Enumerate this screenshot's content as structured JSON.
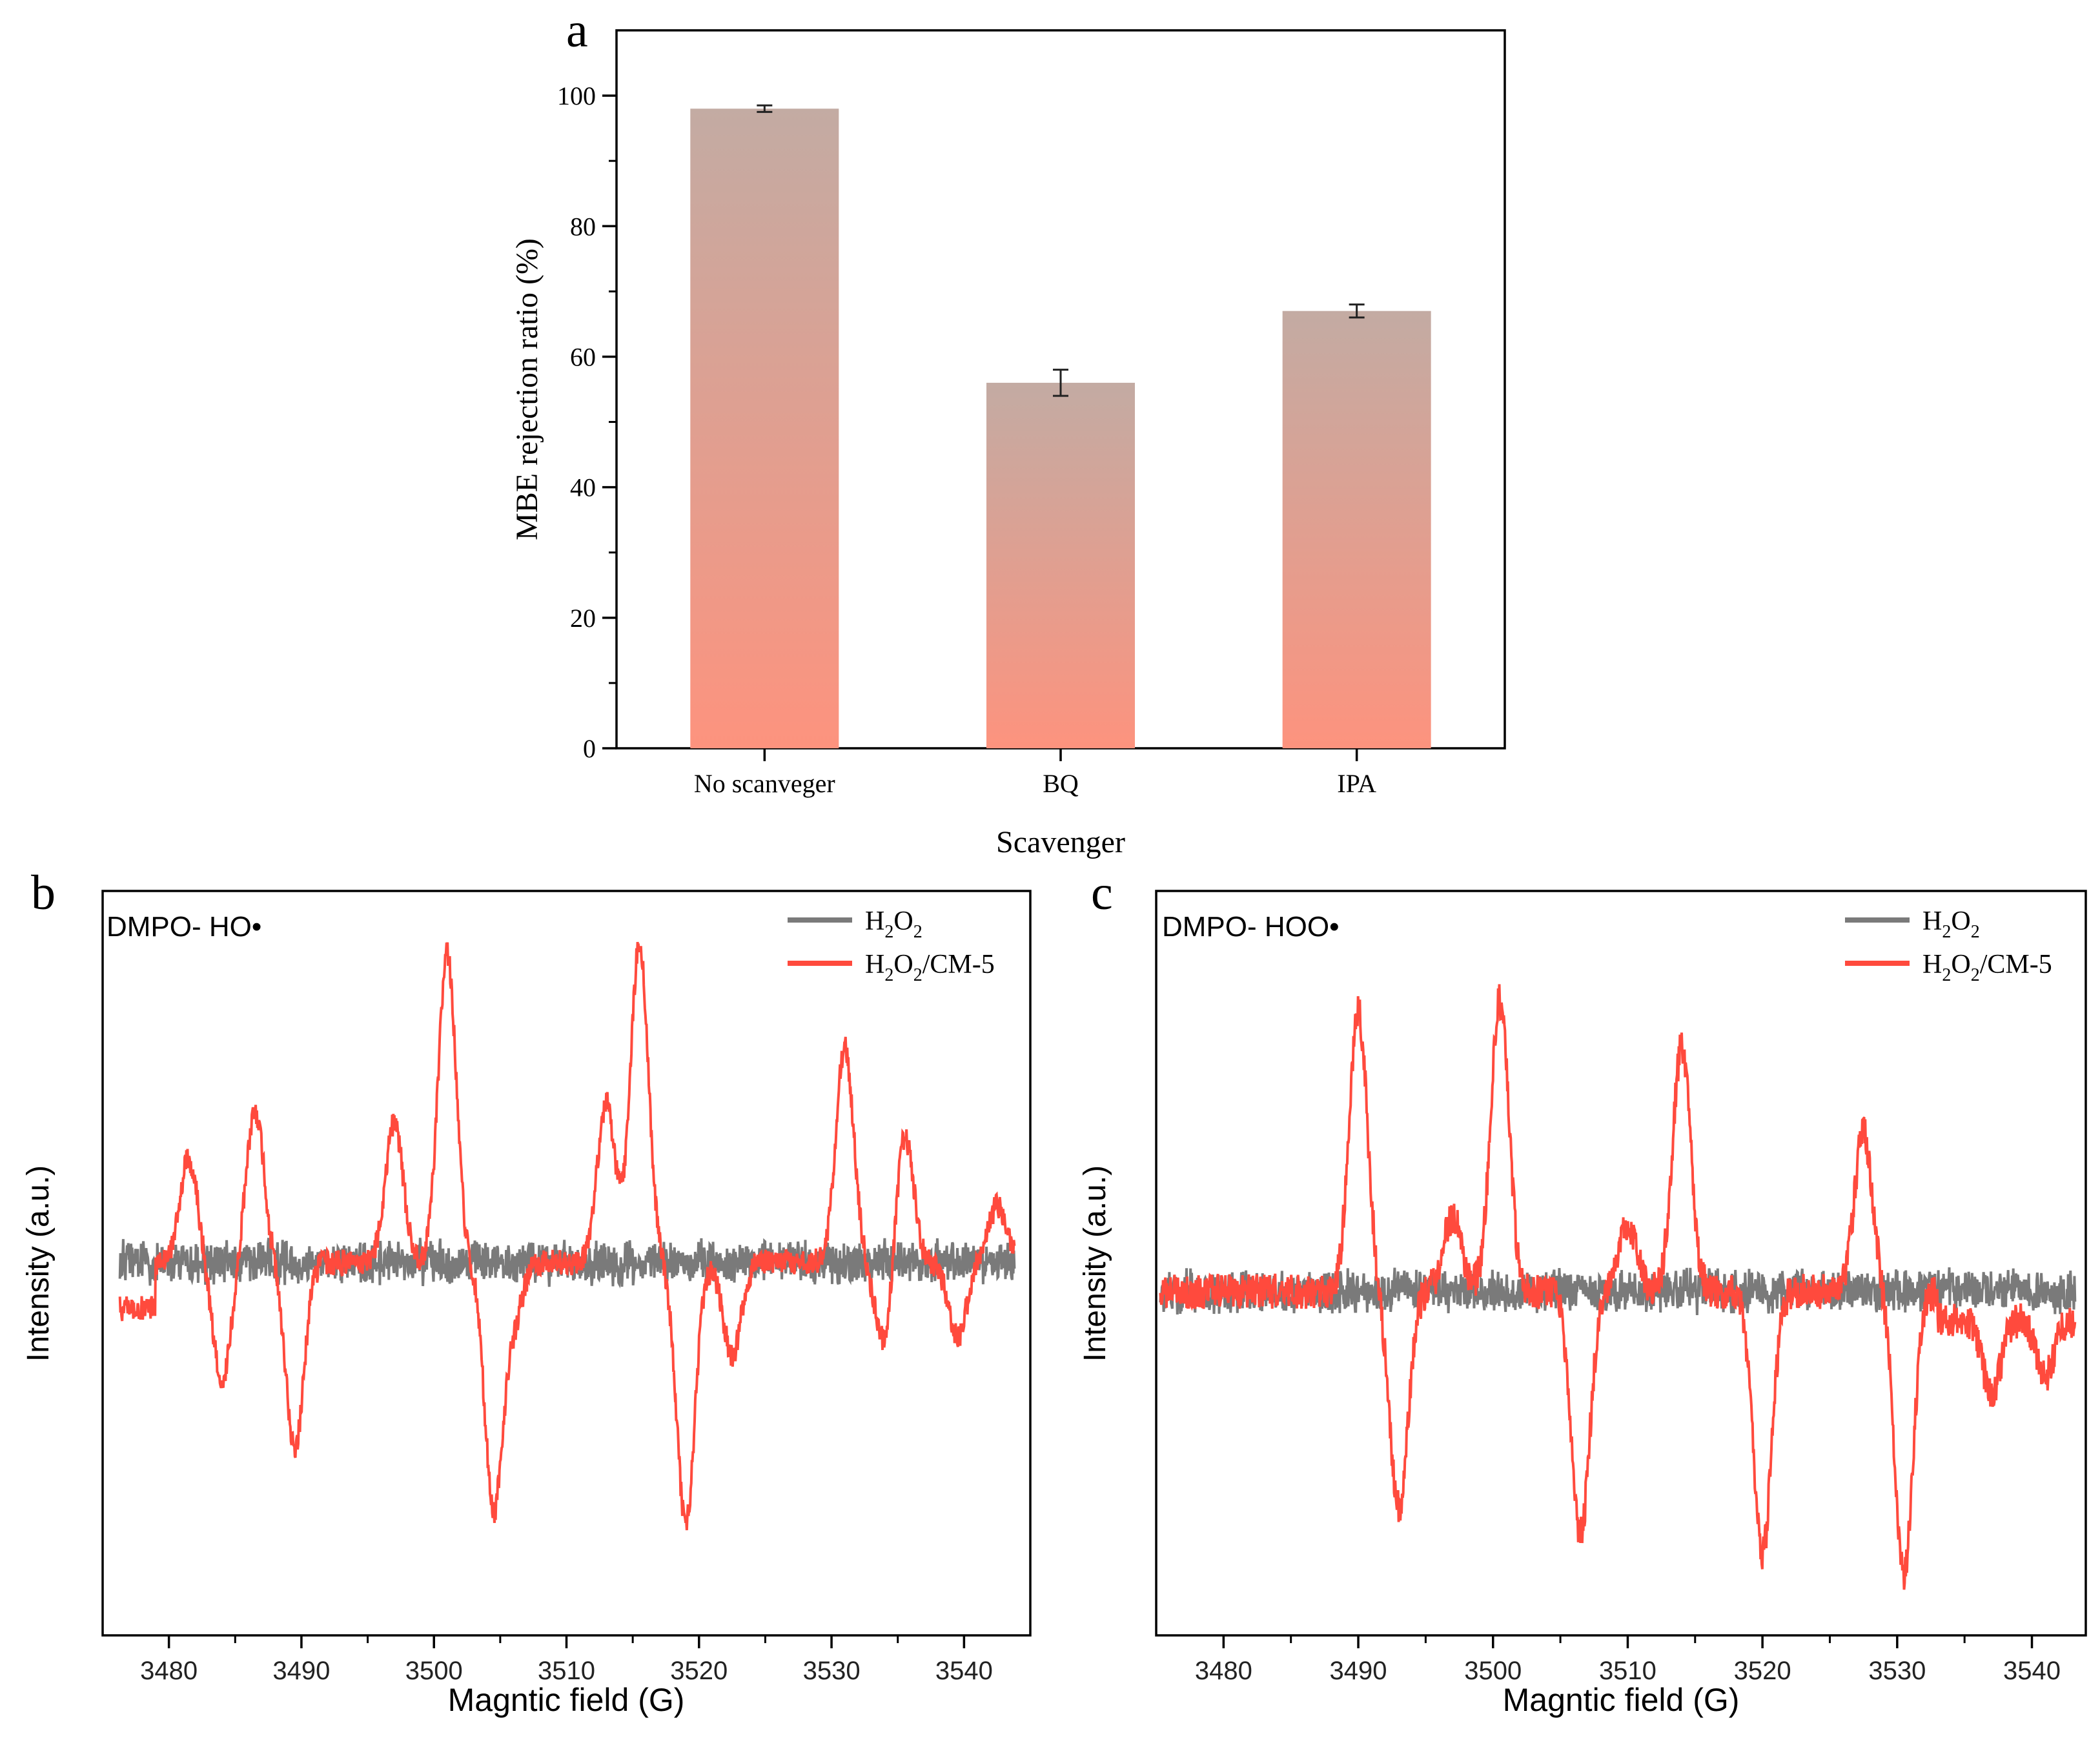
{
  "chart_data": [
    {
      "panel": "a",
      "type": "bar",
      "title": "",
      "xlabel": "Scavenger",
      "ylabel": "MBE rejection ratio (%)",
      "ylim": [
        0,
        110
      ],
      "yticks": [
        "0",
        "20",
        "40",
        "60",
        "80",
        "100"
      ],
      "categories": [
        "No scanveger",
        "BQ",
        "IPA"
      ],
      "values": [
        98,
        56,
        67
      ],
      "errors": [
        0.5,
        2.0,
        1.0
      ],
      "colors": {
        "bar_top": "#c3aba3",
        "bar_bottom": "#fd937e",
        "axis": "#000000"
      }
    },
    {
      "panel": "b",
      "type": "line",
      "annotation": "DMPO- HO•",
      "xlabel": "Magntic field (G)",
      "ylabel": "Intensity (a.u.)",
      "xlim": [
        3475,
        3545
      ],
      "xticks": [
        "3480",
        "3490",
        "3500",
        "3510",
        "3520",
        "3530",
        "3540"
      ],
      "series": [
        {
          "name": "H₂O₂",
          "legend_main": "H",
          "legend_sub1": "2",
          "legend_mid": "O",
          "legend_sub2": "2",
          "legend_tail": "",
          "color": "#7a7a7a"
        },
        {
          "name": "H₂O₂/CM-5",
          "legend_main": "H",
          "legend_sub1": "2",
          "legend_mid": "O",
          "legend_sub2": "2",
          "legend_tail": "/CM-5",
          "color": "#ff4a3d"
        }
      ],
      "peaks": [
        [
          3481.5,
          0.55
        ],
        [
          3484,
          -0.62
        ],
        [
          3486.5,
          0.8
        ],
        [
          3489.5,
          -1.0
        ],
        [
          3497,
          0.75
        ],
        [
          3501,
          1.65
        ],
        [
          3504.5,
          -1.3
        ],
        [
          3506,
          -0.3
        ],
        [
          3513,
          0.85
        ],
        [
          3515.5,
          1.7
        ],
        [
          3519,
          -1.4
        ],
        [
          3522.5,
          -0.5
        ],
        [
          3531,
          1.15
        ],
        [
          3534,
          -0.45
        ],
        [
          3535.5,
          0.7
        ],
        [
          3539.5,
          -0.4
        ],
        [
          3542.5,
          0.3
        ]
      ]
    },
    {
      "panel": "c",
      "type": "line",
      "annotation": "DMPO- HOO•",
      "xlabel": "Magntic field (G)",
      "ylabel": "Intensity (a.u.)",
      "xlim": [
        3475,
        3544
      ],
      "xticks": [
        "3480",
        "3490",
        "3500",
        "3510",
        "3520",
        "3530",
        "3540"
      ],
      "series": [
        {
          "name": "H₂O₂",
          "legend_main": "H",
          "legend_sub1": "2",
          "legend_mid": "O",
          "legend_sub2": "2",
          "legend_tail": "",
          "color": "#7a7a7a"
        },
        {
          "name": "H₂O₂/CM-5",
          "legend_main": "H",
          "legend_sub1": "2",
          "legend_mid": "O",
          "legend_sub2": "2",
          "legend_tail": "/CM-5",
          "color": "#ff4a3d"
        }
      ],
      "peaks": [
        [
          3490,
          1.5
        ],
        [
          3493,
          -1.15
        ],
        [
          3497,
          0.4
        ],
        [
          3500.5,
          1.55
        ],
        [
          3506.5,
          -1.3
        ],
        [
          3510,
          0.35
        ],
        [
          3514,
          1.3
        ],
        [
          3520,
          -1.4
        ],
        [
          3527.5,
          0.85
        ],
        [
          3530.5,
          -1.5
        ],
        [
          3537,
          -0.4
        ],
        [
          3541,
          -0.3
        ]
      ]
    }
  ],
  "panel_labels": {
    "a": "a",
    "b": "b",
    "c": "c"
  }
}
